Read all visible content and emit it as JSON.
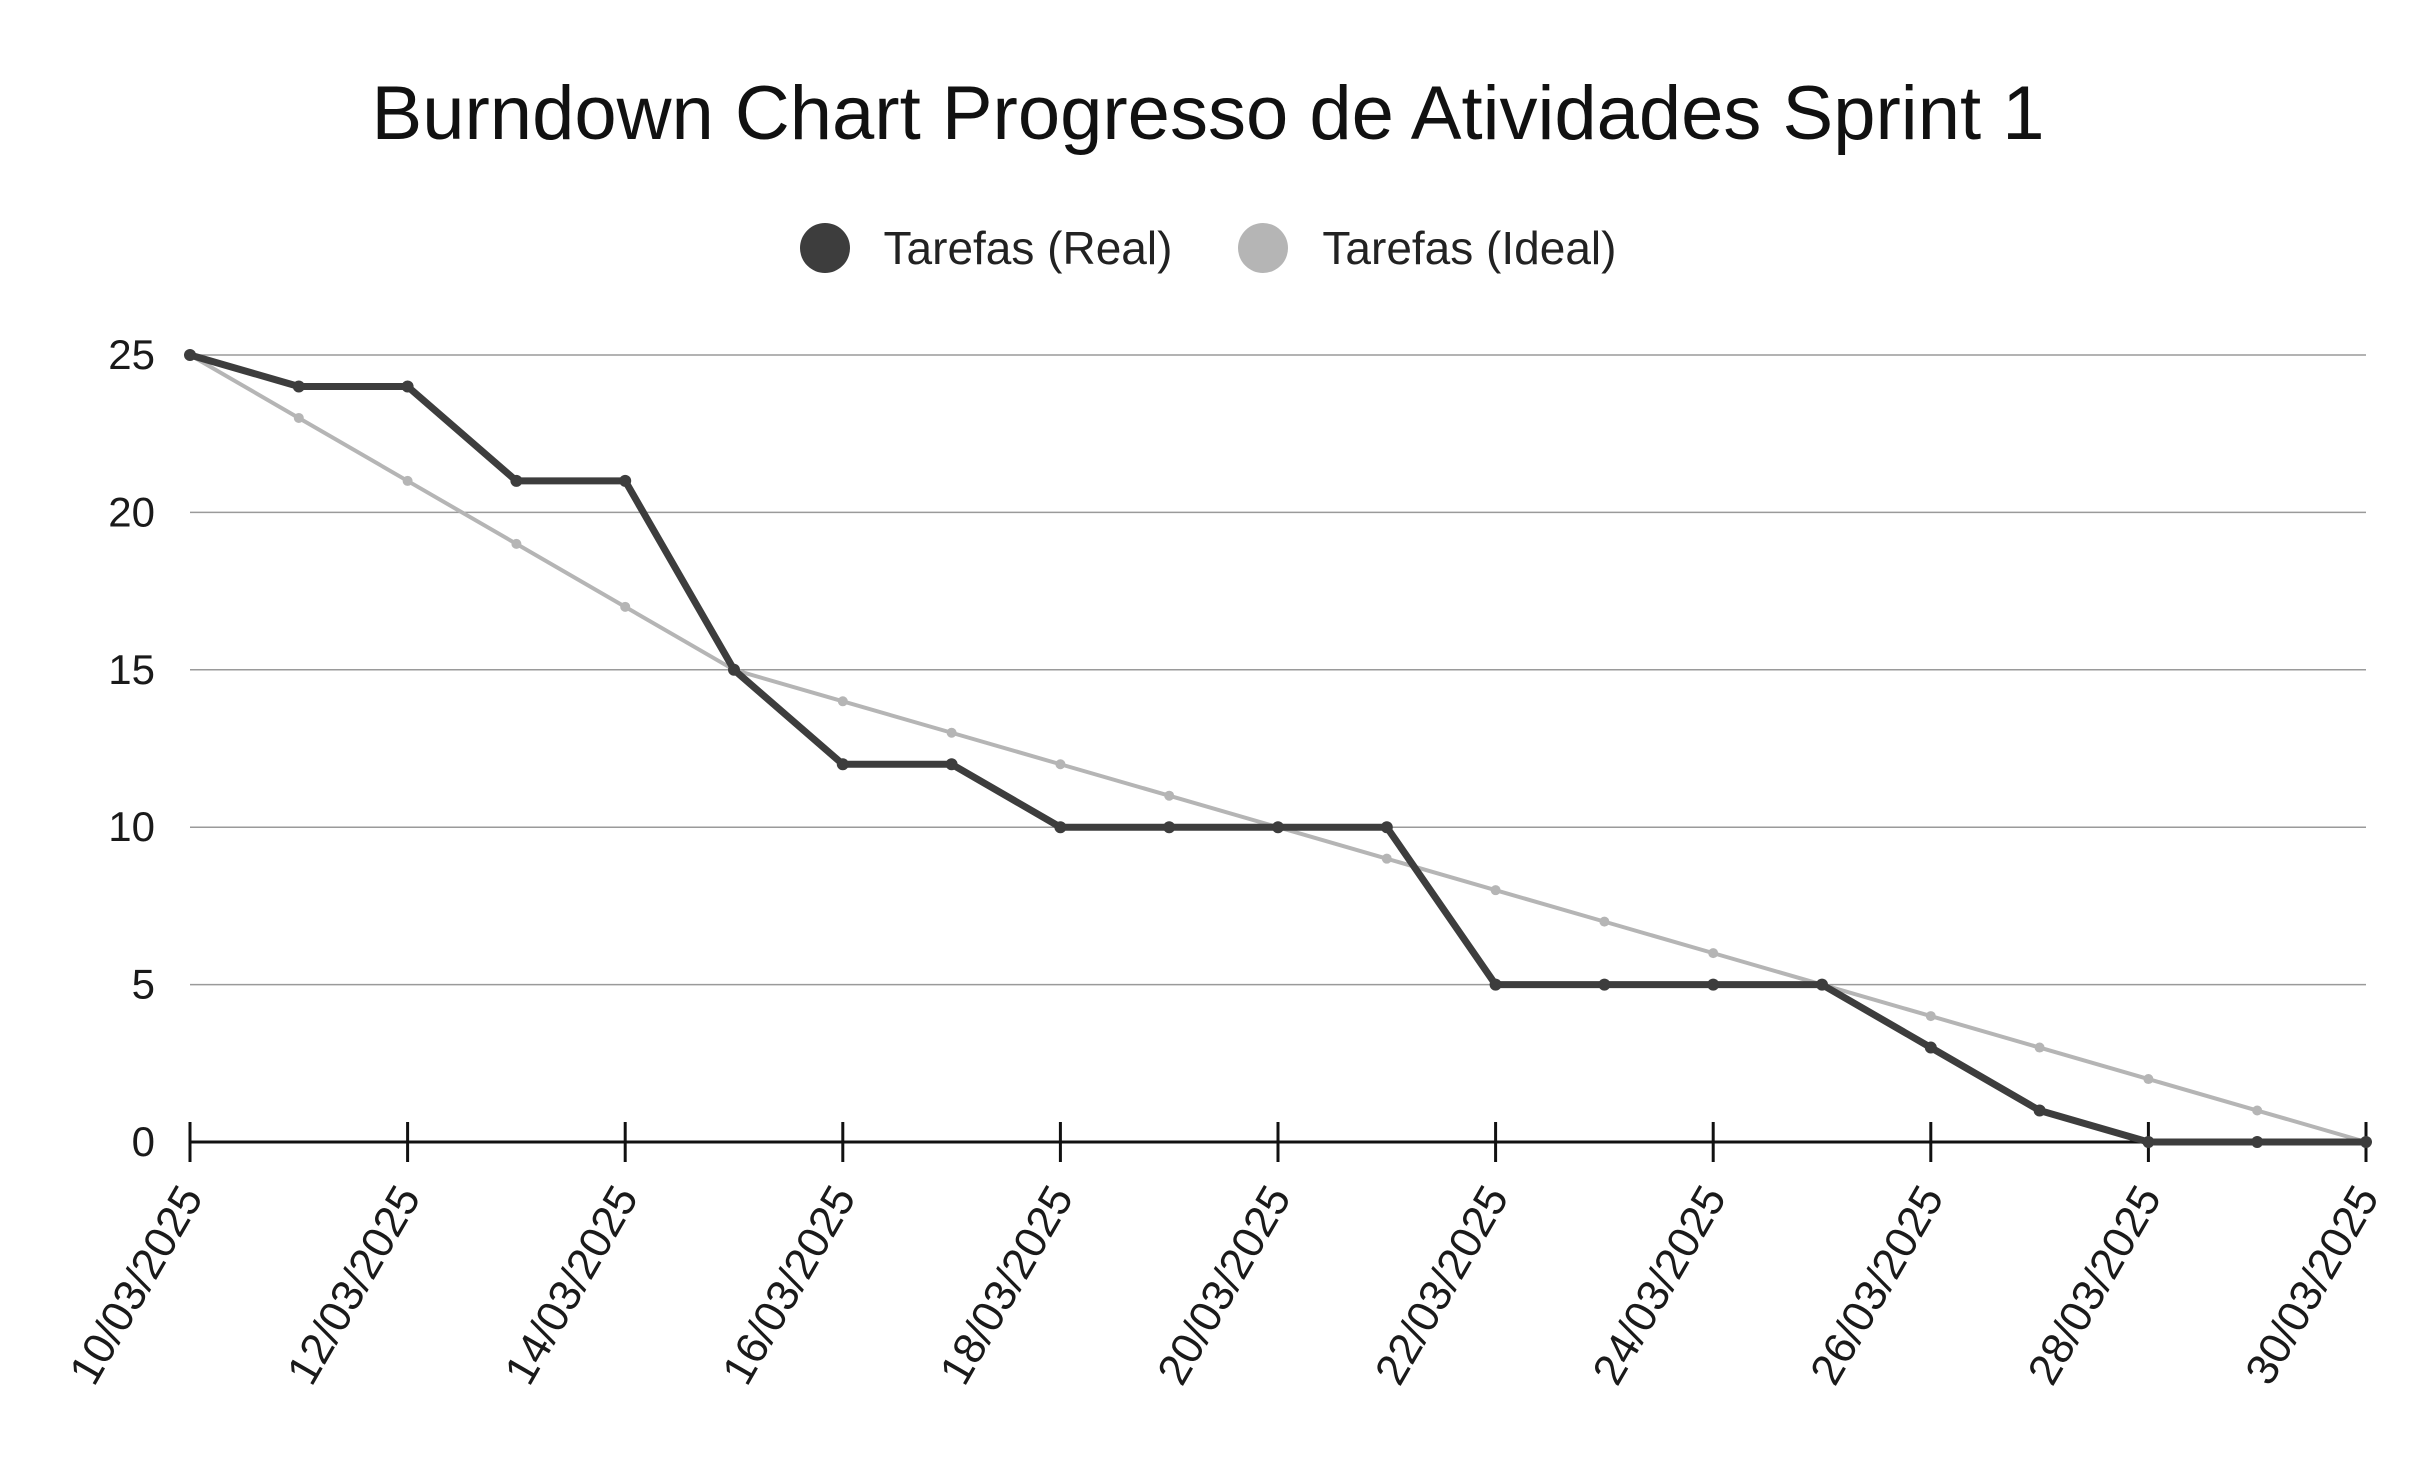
{
  "chart_data": {
    "type": "line",
    "title": "Burndown Chart Progresso de Atividades Sprint 1",
    "xlabel": "",
    "ylabel": "",
    "x": [
      "10/03/2025",
      "11/03/2025",
      "12/03/2025",
      "13/03/2025",
      "14/03/2025",
      "15/03/2025",
      "16/03/2025",
      "17/03/2025",
      "18/03/2025",
      "19/03/2025",
      "20/03/2025",
      "21/03/2025",
      "22/03/2025",
      "23/03/2025",
      "24/03/2025",
      "25/03/2025",
      "26/03/2025",
      "27/03/2025",
      "28/03/2025",
      "29/03/2025",
      "30/03/2025"
    ],
    "x_tick_labels": [
      "10/03/2025",
      "12/03/2025",
      "14/03/2025",
      "16/03/2025",
      "18/03/2025",
      "20/03/2025",
      "22/03/2025",
      "24/03/2025",
      "26/03/2025",
      "28/03/2025",
      "30/03/2025"
    ],
    "y_ticks": [
      0,
      5,
      10,
      15,
      20,
      25
    ],
    "ylim": [
      0,
      25
    ],
    "grid": true,
    "legend_position": "top",
    "series": [
      {
        "name": "Tarefas (Real)",
        "color": "#3d3d3d",
        "values": [
          25,
          24,
          24,
          21,
          21,
          15,
          12,
          12,
          10,
          10,
          10,
          10,
          5,
          5,
          5,
          5,
          3,
          1,
          0,
          0,
          0
        ]
      },
      {
        "name": "Tarefas (Ideal)",
        "color": "#b5b5b5",
        "values": [
          25,
          23,
          21,
          19,
          17,
          15,
          14,
          13,
          12,
          11,
          10,
          9,
          8,
          7,
          6,
          5,
          4,
          3,
          2,
          1,
          0
        ]
      }
    ]
  }
}
